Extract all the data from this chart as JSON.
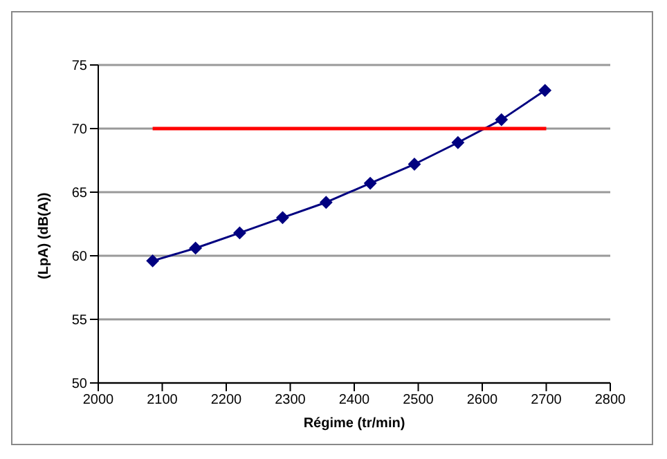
{
  "chart_data": {
    "type": "line",
    "xlabel": "Régime  (tr/min)",
    "ylabel": "(LpA) (dB(A))",
    "xlim": [
      2000,
      2800
    ],
    "xticks": [
      2000,
      2100,
      2200,
      2300,
      2400,
      2500,
      2600,
      2700,
      2800
    ],
    "ylim": [
      50,
      75
    ],
    "yticks": [
      50,
      55,
      60,
      65,
      70,
      75
    ],
    "grid": "y",
    "legend": false,
    "series": [
      {
        "color": "#000080",
        "marker": "diamond",
        "x": [
          2085,
          2152,
          2221,
          2288,
          2356,
          2425,
          2494,
          2562,
          2630,
          2698
        ],
        "values": [
          59.6,
          60.6,
          61.8,
          63,
          64.2,
          65.7,
          67.2,
          68.9,
          70.7,
          73
        ]
      },
      {
        "color": "#ff0000",
        "marker": "none",
        "x": [
          2085,
          2700
        ],
        "values": [
          70,
          70
        ]
      }
    ]
  }
}
